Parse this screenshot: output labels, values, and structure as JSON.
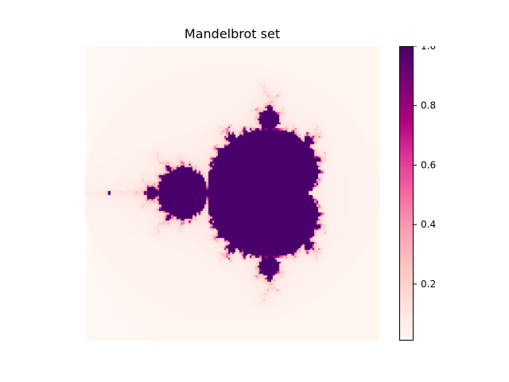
{
  "chart_data": {
    "type": "heatmap",
    "title": "Mandelbrot set",
    "xlabel": "",
    "ylabel": "",
    "axes_visible": false,
    "colormap": "RdPu",
    "colormap_stops": [
      "#fff7f3",
      "#fde0dd",
      "#fcc5c0",
      "#fa9fb5",
      "#f768a1",
      "#dd3497",
      "#ae017e",
      "#7a0177",
      "#49006a"
    ],
    "function": "mandelbrot escape fraction (iterations / max_iter)",
    "x_range": [
      -2.0,
      1.0
    ],
    "y_range": [
      -1.5,
      1.5
    ],
    "resolution": 150,
    "max_iter": 100,
    "value_range": [
      0.01,
      1.0
    ],
    "colorbar": {
      "ticks": [
        0.2,
        0.4,
        0.6,
        0.8,
        1.0
      ],
      "tick_labels": [
        "0.2",
        "0.4",
        "0.6",
        "0.8",
        "1.0"
      ]
    }
  }
}
